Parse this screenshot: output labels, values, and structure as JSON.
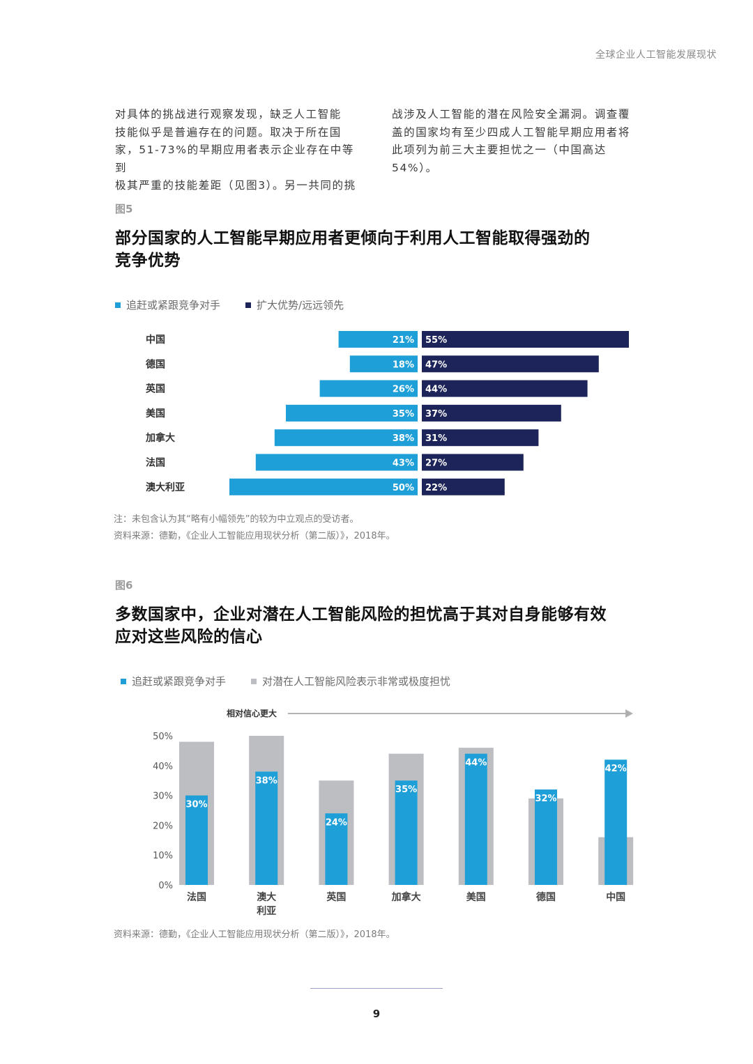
{
  "header": {
    "title": "全球企业人工智能发展现状"
  },
  "intro": {
    "left_lines": [
      "对具体的挑战进行观察发现，缺乏人工智能",
      "技能似乎是普遍存在的问题。取决于所在国",
      "家，51-73%的早期应用者表示企业存在中等到",
      "极其严重的技能差距（见图3）。另一共同的挑"
    ],
    "right_lines": [
      "战涉及人工智能的潜在风险安全漏洞。调查覆",
      "盖的国家均有至少四成人工智能早期应用者将",
      "此项列为前三大主要担忧之一（中国高达54%）。"
    ]
  },
  "fig5": {
    "label": "图5",
    "title_line1": "部分国家的人工智能早期应用者更倾向于利用人工智能取得强劲的",
    "title_line2": "竞争优势",
    "legend": [
      {
        "label": "追赶或紧跟竞争对手",
        "color": "#1f9fd8"
      },
      {
        "label": "扩大优势/远远领先",
        "color": "#1c2459"
      }
    ],
    "note": "注：未包含认为其“略有小幅领先”的较为中立观点的受访者。",
    "source": "资料来源：德勤，《企业人工智能应用现状分析（第二版）》，2018年。"
  },
  "fig6": {
    "label": "图6",
    "title_line1": "多数国家中，企业对潜在人工智能风险的担忧高于其对自身能够有效",
    "title_line2": "应对这些风险的信心",
    "legend": [
      {
        "label": "追赶或紧跟竞争对手",
        "color": "#1f9fd8"
      },
      {
        "label": "对潜在人工智能风险表示非常或极度担忧",
        "color": "#bdbec2"
      }
    ],
    "arrow_label": "相对信心更大",
    "source": "资料来源：德勤，《企业人工智能应用现状分析（第二版）》，2018年。"
  },
  "chart_data": [
    {
      "type": "bar",
      "orientation": "horizontal-diverging",
      "categories": [
        "中国",
        "德国",
        "英国",
        "美国",
        "加拿大",
        "法国",
        "澳大利亚"
      ],
      "series": [
        {
          "name": "追赶或紧跟竞争对手",
          "values": [
            21,
            18,
            26,
            35,
            38,
            43,
            50
          ],
          "color": "#1f9fd8"
        },
        {
          "name": "扩大优势/远远领先",
          "values": [
            55,
            47,
            44,
            37,
            31,
            27,
            22
          ],
          "color": "#1c2459"
        }
      ],
      "value_labels": {
        "left": [
          "21%",
          "18%",
          "26%",
          "35%",
          "38%",
          "43%",
          "50%"
        ],
        "right": [
          "55%",
          "47%",
          "44%",
          "37%",
          "31%",
          "27%",
          "22%"
        ]
      },
      "grid": false,
      "legend": "top-left"
    },
    {
      "type": "bar",
      "categories": [
        "法国",
        "澳大利亚",
        "英国",
        "加拿大",
        "美国",
        "德国",
        "中国"
      ],
      "category_label_lines": [
        [
          "法国"
        ],
        [
          "澳大",
          "利亚"
        ],
        [
          "英国"
        ],
        [
          "加拿大"
        ],
        [
          "美国"
        ],
        [
          "德国"
        ],
        [
          "中国"
        ]
      ],
      "series": [
        {
          "name": "对潜在人工智能风险表示非常或极度担忧",
          "values": [
            48,
            50,
            35,
            44,
            46,
            29,
            16
          ],
          "color": "#bdbec2"
        },
        {
          "name": "追赶或紧跟竞争对手",
          "values": [
            30,
            38,
            24,
            35,
            44,
            32,
            42
          ],
          "color": "#1f9fd8"
        }
      ],
      "value_labels": [
        "30%",
        "38%",
        "24%",
        "35%",
        "44%",
        "32%",
        "42%"
      ],
      "y_ticks": [
        "0%",
        "10%",
        "20%",
        "30%",
        "40%",
        "50%"
      ],
      "ylim": [
        0,
        50
      ],
      "grid": false,
      "legend": "top-left"
    }
  ],
  "footer": {
    "page": "9"
  }
}
